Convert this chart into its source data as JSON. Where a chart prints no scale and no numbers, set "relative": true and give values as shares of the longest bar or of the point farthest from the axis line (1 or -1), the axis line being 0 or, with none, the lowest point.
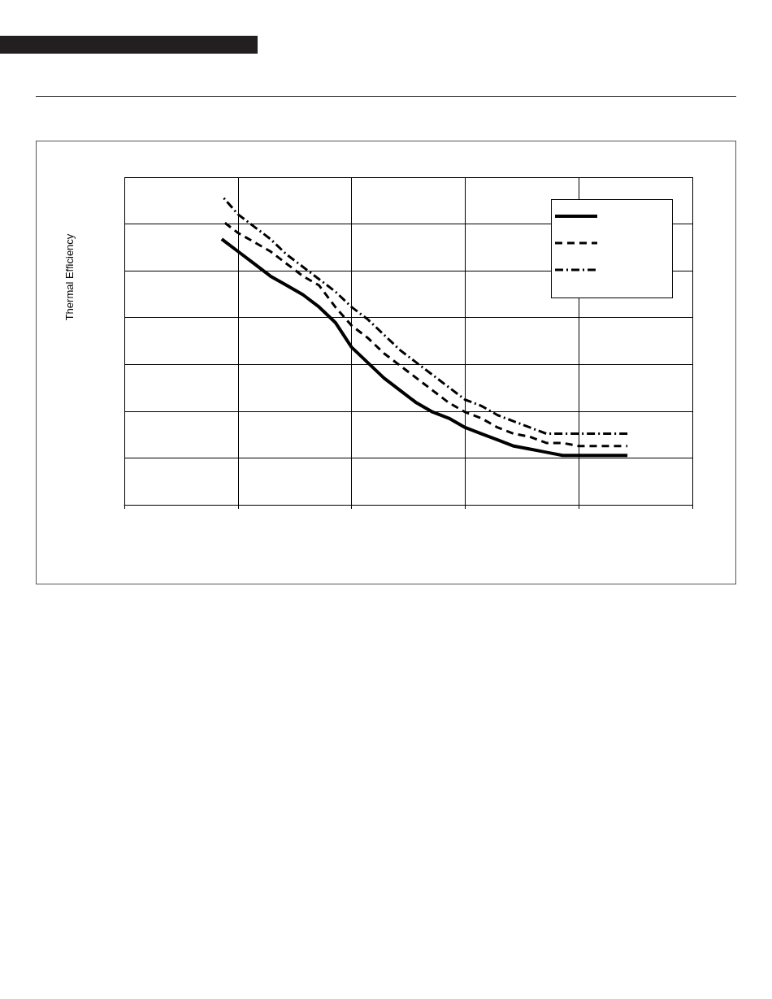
{
  "chart_data": {
    "type": "line",
    "ylabel": "Thermal Efficiency",
    "relative": true,
    "grid": true,
    "marker": "none",
    "categories": [
      null,
      null,
      null,
      null,
      null,
      null,
      null,
      null,
      null,
      null,
      null,
      null,
      null,
      null,
      null,
      null,
      null,
      null,
      null,
      null,
      null,
      null,
      null,
      null,
      null,
      null,
      null,
      null,
      null,
      null,
      null,
      null,
      null,
      null,
      null,
      null
    ],
    "series": [
      {
        "color": "#000000",
        "line_style": "solid",
        "values": [
          null,
          null,
          null,
          null,
          null,
          null,
          0.86,
          0.82,
          0.78,
          0.74,
          0.71,
          0.68,
          0.64,
          0.59,
          0.51,
          0.46,
          0.41,
          0.37,
          0.33,
          0.3,
          0.28,
          0.25,
          0.23,
          0.21,
          0.19,
          0.18,
          0.17,
          0.16,
          0.16,
          0.16,
          0.16,
          0.16,
          null,
          null,
          null,
          null
        ]
      },
      {
        "color": "#000000",
        "line_style": "dashed",
        "values": [
          null,
          null,
          null,
          null,
          null,
          null,
          0.92,
          0.88,
          0.85,
          0.82,
          0.78,
          0.74,
          0.71,
          0.64,
          0.58,
          0.54,
          0.49,
          0.45,
          0.41,
          0.37,
          0.33,
          0.3,
          0.28,
          0.25,
          0.23,
          0.22,
          0.2,
          0.2,
          0.19,
          0.19,
          0.19,
          0.19,
          null,
          null,
          null,
          null
        ]
      },
      {
        "color": "#000000",
        "line_style": "dashdot",
        "values": [
          null,
          null,
          null,
          null,
          null,
          null,
          1.0,
          0.94,
          0.9,
          0.86,
          0.81,
          0.77,
          0.73,
          0.69,
          0.64,
          0.6,
          0.55,
          0.5,
          0.46,
          0.42,
          0.38,
          0.34,
          0.32,
          0.29,
          0.27,
          0.25,
          0.23,
          0.23,
          0.23,
          0.23,
          0.23,
          0.23,
          null,
          null,
          null,
          null
        ]
      }
    ]
  }
}
